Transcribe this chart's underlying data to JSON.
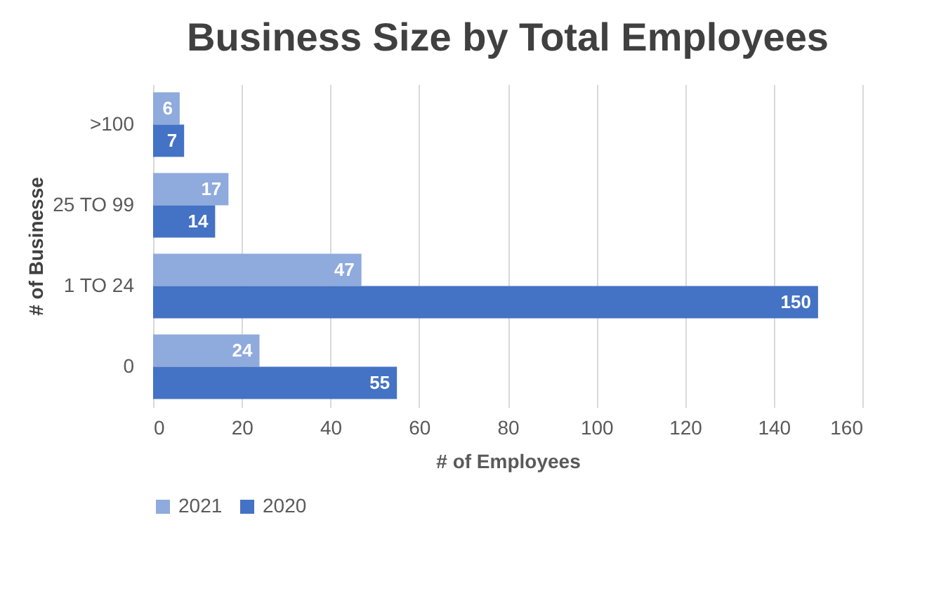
{
  "chart_data": {
    "type": "bar",
    "orientation": "horizontal",
    "title": "Business Size by Total Employees",
    "xlabel": "# of Employees",
    "ylabel": "# of Businesse",
    "categories": [
      ">100",
      "25 TO 99",
      "1 TO 24",
      "0"
    ],
    "series": [
      {
        "name": "2021",
        "color": "#8faadc",
        "values": [
          6,
          17,
          47,
          24
        ]
      },
      {
        "name": "2020",
        "color": "#4472c4",
        "values": [
          7,
          14,
          150,
          55
        ]
      }
    ],
    "xlim": [
      0,
      160
    ],
    "xticks": [
      0,
      20,
      40,
      60,
      80,
      100,
      120,
      140,
      160
    ],
    "grid": "x",
    "legend": "bottom",
    "data_labels": true
  }
}
